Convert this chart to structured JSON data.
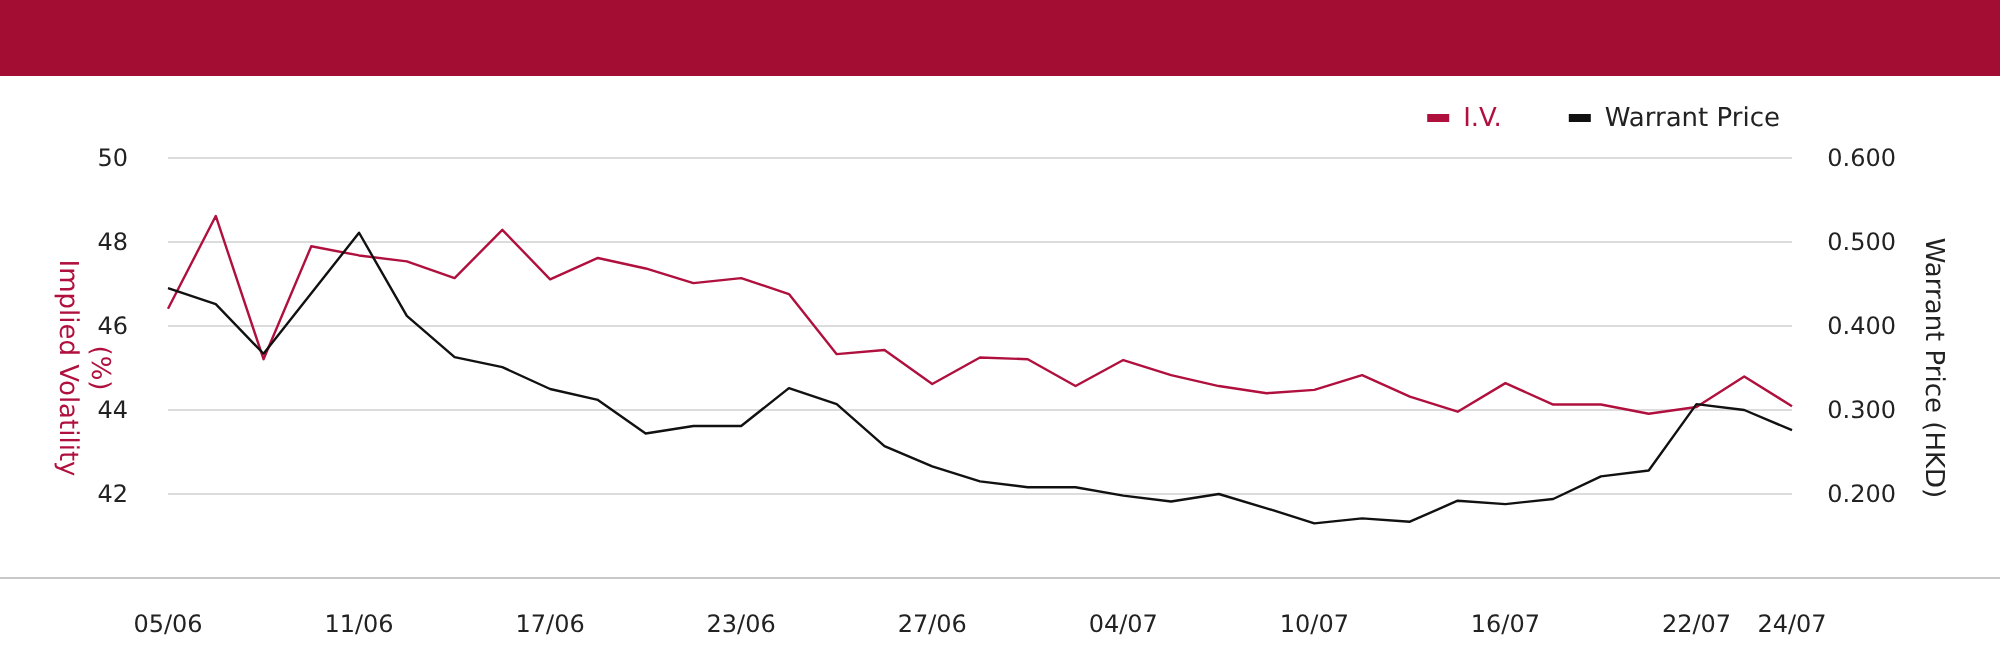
{
  "chart_data": {
    "type": "line",
    "categories": [
      "05/06",
      null,
      null,
      null,
      "11/06",
      null,
      null,
      null,
      "17/06",
      null,
      null,
      null,
      "23/06",
      null,
      null,
      null,
      "27/06",
      null,
      null,
      null,
      "04/07",
      null,
      null,
      null,
      "10/07",
      null,
      null,
      null,
      "16/07",
      null,
      null,
      null,
      "22/07",
      null,
      "24/07"
    ],
    "series": [
      {
        "name": "I.V.",
        "color": "#b0103e",
        "values": [
          46.41,
          48.62,
          45.21,
          47.9,
          47.68,
          47.54,
          47.14,
          48.29,
          47.11,
          47.62,
          47.37,
          47.02,
          47.14,
          46.76,
          45.33,
          45.43,
          44.62,
          45.25,
          45.21,
          44.57,
          45.19,
          44.83,
          44.57,
          44.4,
          44.48,
          44.83,
          44.32,
          43.96,
          44.64,
          44.13,
          44.13,
          43.91,
          44.07,
          44.8,
          44.09
        ]
      },
      {
        "name": "Warrant Price",
        "color": "#111111",
        "axis": "y2",
        "values": [
          0.445,
          0.426,
          0.367,
          0.439,
          0.511,
          0.412,
          0.363,
          0.351,
          0.325,
          0.312,
          0.272,
          0.281,
          0.281,
          0.326,
          0.307,
          0.257,
          0.233,
          0.215,
          0.208,
          0.208,
          0.198,
          0.191,
          0.2,
          0.183,
          0.165,
          0.171,
          0.167,
          0.192,
          0.188,
          0.194,
          0.221,
          0.228,
          0.307,
          0.3,
          0.276
        ]
      }
    ],
    "ylabel": "Implied Volatility (%)",
    "y2label": "Warrant Price (HKD)",
    "ylim": [
      40,
      50
    ],
    "yticks": [
      42,
      44,
      46,
      48,
      50
    ],
    "y2lim": [
      0.1,
      0.6
    ],
    "y2ticks": [
      {
        "value": 0.2,
        "label": "0.200"
      },
      {
        "value": 0.3,
        "label": "0.300"
      },
      {
        "value": 0.4,
        "label": "0.400"
      },
      {
        "value": 0.5,
        "label": "0.500"
      },
      {
        "value": 0.6,
        "label": "0.600"
      }
    ],
    "grid": "y",
    "legend": "top right",
    "line_style": "solid",
    "marker": "none"
  }
}
